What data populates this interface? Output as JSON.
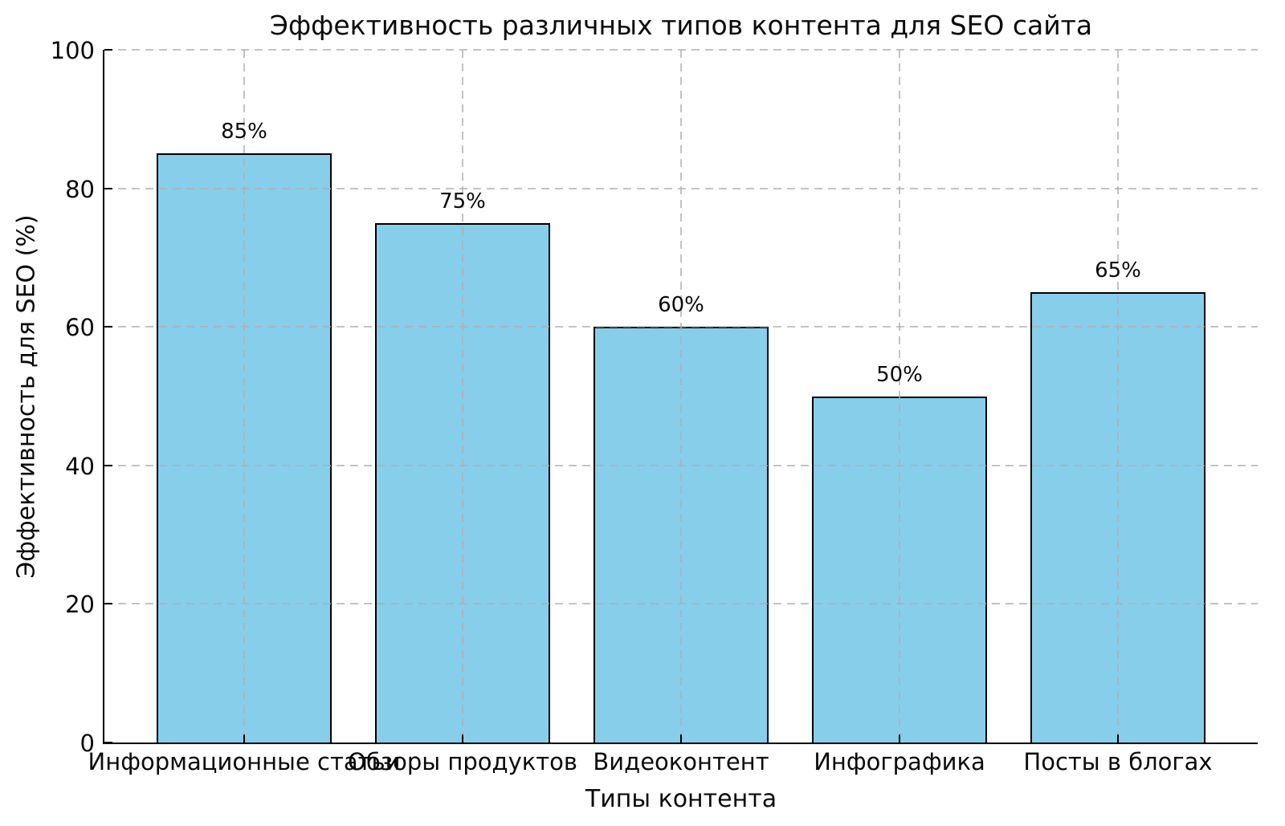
{
  "chart_data": {
    "type": "bar",
    "title": "Эффективность различных типов контента для SEO сайта",
    "xlabel": "Типы контента",
    "ylabel": "Эффективность для SEO (%)",
    "categories": [
      "Информационные статьи",
      "Обзоры продуктов",
      "Видеоконтент",
      "Инфографика",
      "Посты в блогах"
    ],
    "values": [
      85,
      75,
      60,
      50,
      65
    ],
    "value_labels": [
      "85%",
      "75%",
      "60%",
      "50%",
      "65%"
    ],
    "ylim": [
      0,
      100
    ],
    "yticks": [
      0,
      20,
      40,
      60,
      80,
      100
    ],
    "grid": "dashed gray, both axes, drawn above bars",
    "ticks_direction": "in",
    "legend": "none",
    "colors": {
      "bar_fill": "#87CEEB",
      "bar_edge": "#000000",
      "grid": "#b0b0b0",
      "text": "#0a0a0a",
      "background": "#ffffff"
    }
  }
}
